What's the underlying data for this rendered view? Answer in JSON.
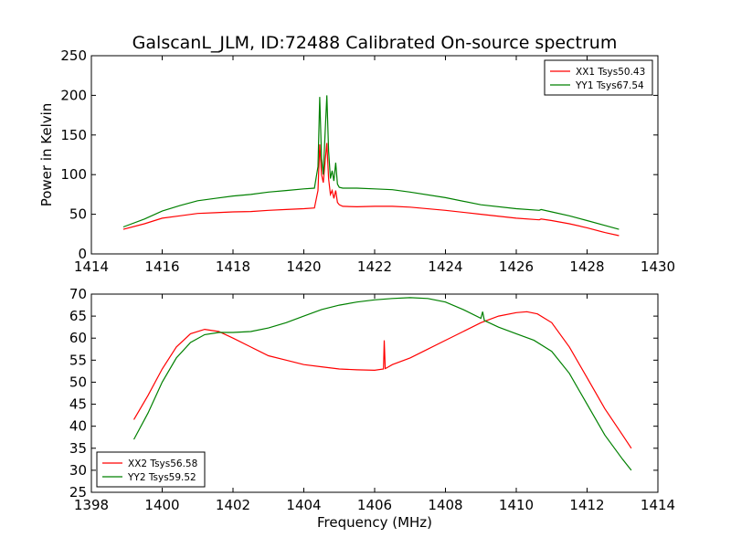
{
  "title": "GalscanL_JLM, ID:72488 Calibrated On-source spectrum",
  "chart_data": [
    {
      "type": "line",
      "ylabel": "Power in Kelvin",
      "xlabel": "",
      "xlim": [
        1414,
        1430
      ],
      "ylim": [
        0,
        250
      ],
      "xticks": [
        "1414",
        "1416",
        "1418",
        "1420",
        "1422",
        "1424",
        "1426",
        "1428",
        "1430"
      ],
      "yticks": [
        "0",
        "50",
        "100",
        "150",
        "200",
        "250"
      ],
      "legend_position": "top-right",
      "series": [
        {
          "name": "XX1 Tsys50.43",
          "color": "#ff0000",
          "x": [
            1414.9,
            1415.5,
            1416.0,
            1416.5,
            1417.0,
            1417.5,
            1418.0,
            1418.5,
            1419.0,
            1419.5,
            1420.0,
            1420.3,
            1420.4,
            1420.45,
            1420.5,
            1420.55,
            1420.6,
            1420.65,
            1420.7,
            1420.75,
            1420.8,
            1420.85,
            1420.9,
            1420.95,
            1421.0,
            1421.1,
            1421.5,
            1422.0,
            1422.5,
            1423.0,
            1424.0,
            1425.0,
            1426.0,
            1426.65,
            1426.7,
            1427.0,
            1427.5,
            1428.0,
            1428.5,
            1428.9
          ],
          "y": [
            31,
            38,
            45,
            48,
            51,
            52,
            53,
            53.5,
            55,
            56,
            57,
            58,
            80,
            138,
            100,
            90,
            115,
            140,
            95,
            75,
            80,
            70,
            80,
            65,
            62,
            60,
            59.5,
            60,
            60,
            59,
            55,
            50,
            45,
            43,
            44,
            42,
            38,
            33,
            27,
            23
          ]
        },
        {
          "name": "YY1 Tsys67.54",
          "color": "#008000",
          "x": [
            1414.9,
            1415.5,
            1416.0,
            1416.5,
            1417.0,
            1417.5,
            1418.0,
            1418.5,
            1419.0,
            1419.5,
            1420.0,
            1420.3,
            1420.4,
            1420.45,
            1420.5,
            1420.55,
            1420.6,
            1420.65,
            1420.7,
            1420.75,
            1420.8,
            1420.85,
            1420.9,
            1420.95,
            1421.0,
            1421.1,
            1421.5,
            1422.0,
            1422.5,
            1423.0,
            1424.0,
            1425.0,
            1426.0,
            1426.65,
            1426.7,
            1427.0,
            1427.5,
            1428.0,
            1428.5,
            1428.9
          ],
          "y": [
            34,
            44,
            54,
            61,
            67,
            70,
            73,
            75,
            78,
            80,
            82,
            83,
            110,
            198,
            120,
            100,
            150,
            200,
            130,
            95,
            105,
            92,
            115,
            88,
            84,
            83,
            83,
            82,
            81,
            78,
            71,
            62,
            57,
            55,
            56,
            53,
            48,
            42,
            36,
            31
          ]
        }
      ]
    },
    {
      "type": "line",
      "ylabel": "",
      "xlabel": "Frequency (MHz)",
      "xlim": [
        1398,
        1414
      ],
      "ylim": [
        25,
        70
      ],
      "xticks": [
        "1398",
        "1400",
        "1402",
        "1404",
        "1406",
        "1408",
        "1410",
        "1412",
        "1414"
      ],
      "yticks": [
        "25",
        "30",
        "35",
        "40",
        "45",
        "50",
        "55",
        "60",
        "65",
        "70"
      ],
      "legend_position": "bottom-left",
      "series": [
        {
          "name": "XX2 Tsys56.58",
          "color": "#ff0000",
          "x": [
            1399.2,
            1399.6,
            1400.0,
            1400.4,
            1400.8,
            1401.2,
            1401.6,
            1402.0,
            1402.5,
            1403.0,
            1403.5,
            1404.0,
            1404.5,
            1405.0,
            1405.5,
            1406.0,
            1406.25,
            1406.27,
            1406.3,
            1406.33,
            1406.5,
            1407.0,
            1407.5,
            1408.0,
            1408.5,
            1409.0,
            1409.5,
            1410.0,
            1410.3,
            1410.6,
            1411.0,
            1411.5,
            1412.0,
            1412.5,
            1413.0,
            1413.25
          ],
          "y": [
            41.5,
            47,
            53,
            58,
            61,
            62,
            61.5,
            60,
            58,
            56,
            55,
            54,
            53.5,
            53,
            52.8,
            52.7,
            53,
            59.5,
            53.1,
            53.2,
            54,
            55.5,
            57.5,
            59.5,
            61.5,
            63.5,
            65,
            65.8,
            66,
            65.5,
            63.5,
            58,
            51,
            44,
            38,
            35
          ]
        },
        {
          "name": "YY2 Tsys59.52",
          "color": "#008000",
          "x": [
            1399.2,
            1399.6,
            1400.0,
            1400.4,
            1400.8,
            1401.2,
            1401.6,
            1402.0,
            1402.5,
            1403.0,
            1403.5,
            1404.0,
            1404.5,
            1405.0,
            1405.5,
            1406.0,
            1406.5,
            1407.0,
            1407.5,
            1408.0,
            1408.5,
            1409.0,
            1409.05,
            1409.1,
            1409.5,
            1410.0,
            1410.5,
            1411.0,
            1411.5,
            1412.0,
            1412.5,
            1413.0,
            1413.25
          ],
          "y": [
            37,
            43,
            50,
            55.5,
            59,
            60.8,
            61.3,
            61.3,
            61.5,
            62.3,
            63.5,
            65,
            66.5,
            67.5,
            68.2,
            68.7,
            69,
            69.2,
            69,
            68.2,
            66.5,
            64.5,
            66,
            64,
            62.5,
            61,
            59.5,
            57,
            52,
            45,
            38,
            32.5,
            30
          ]
        }
      ]
    }
  ]
}
